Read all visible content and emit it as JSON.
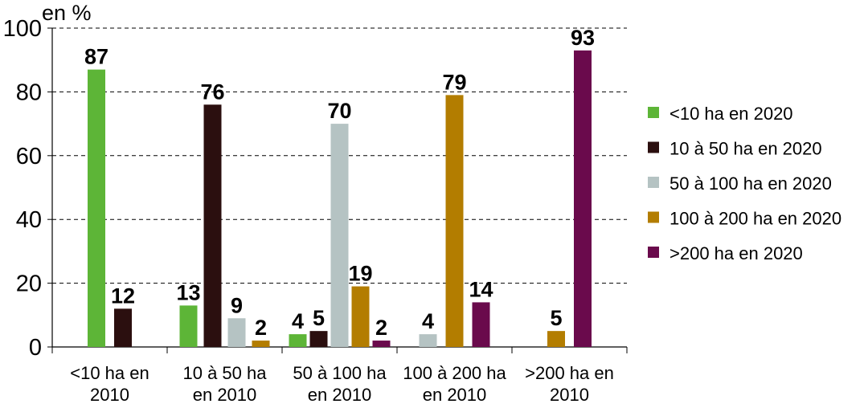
{
  "chart_data": {
    "type": "bar",
    "ylabel": "en %",
    "ylim": [
      0,
      100
    ],
    "yticks": [
      0,
      20,
      40,
      60,
      80,
      100
    ],
    "grid": true,
    "legend_position": "right",
    "categories": [
      "<10 ha en 2010",
      "10 à 50 ha en 2010",
      "50 à 100 ha en 2010",
      "100 à 200 ha en 2010",
      ">200 ha en 2010"
    ],
    "category_lines": [
      [
        "<10 ha en",
        "2010"
      ],
      [
        "10 à 50 ha",
        "en 2010"
      ],
      [
        "50 à 100 ha",
        "en 2010"
      ],
      [
        "100 à 200 ha",
        "en 2010"
      ],
      [
        ">200 ha en",
        "2010"
      ]
    ],
    "series": [
      {
        "name": "<10 ha en 2020",
        "color": "#5db537",
        "values": [
          87,
          13,
          4,
          0,
          0
        ]
      },
      {
        "name": "10 à 50 ha en 2020",
        "color": "#2b0f0f",
        "values": [
          12,
          76,
          5,
          0,
          0
        ]
      },
      {
        "name": "50 à 100 ha en 2020",
        "color": "#b5c3c3",
        "values": [
          0,
          9,
          70,
          4,
          0
        ]
      },
      {
        "name": "100 à 200 ha en 2020",
        "color": "#b37d00",
        "values": [
          0,
          2,
          19,
          79,
          5
        ]
      },
      {
        "name": ">200 ha en 2020",
        "color": "#6a0a4c",
        "values": [
          0,
          0,
          2,
          14,
          93
        ]
      }
    ]
  }
}
